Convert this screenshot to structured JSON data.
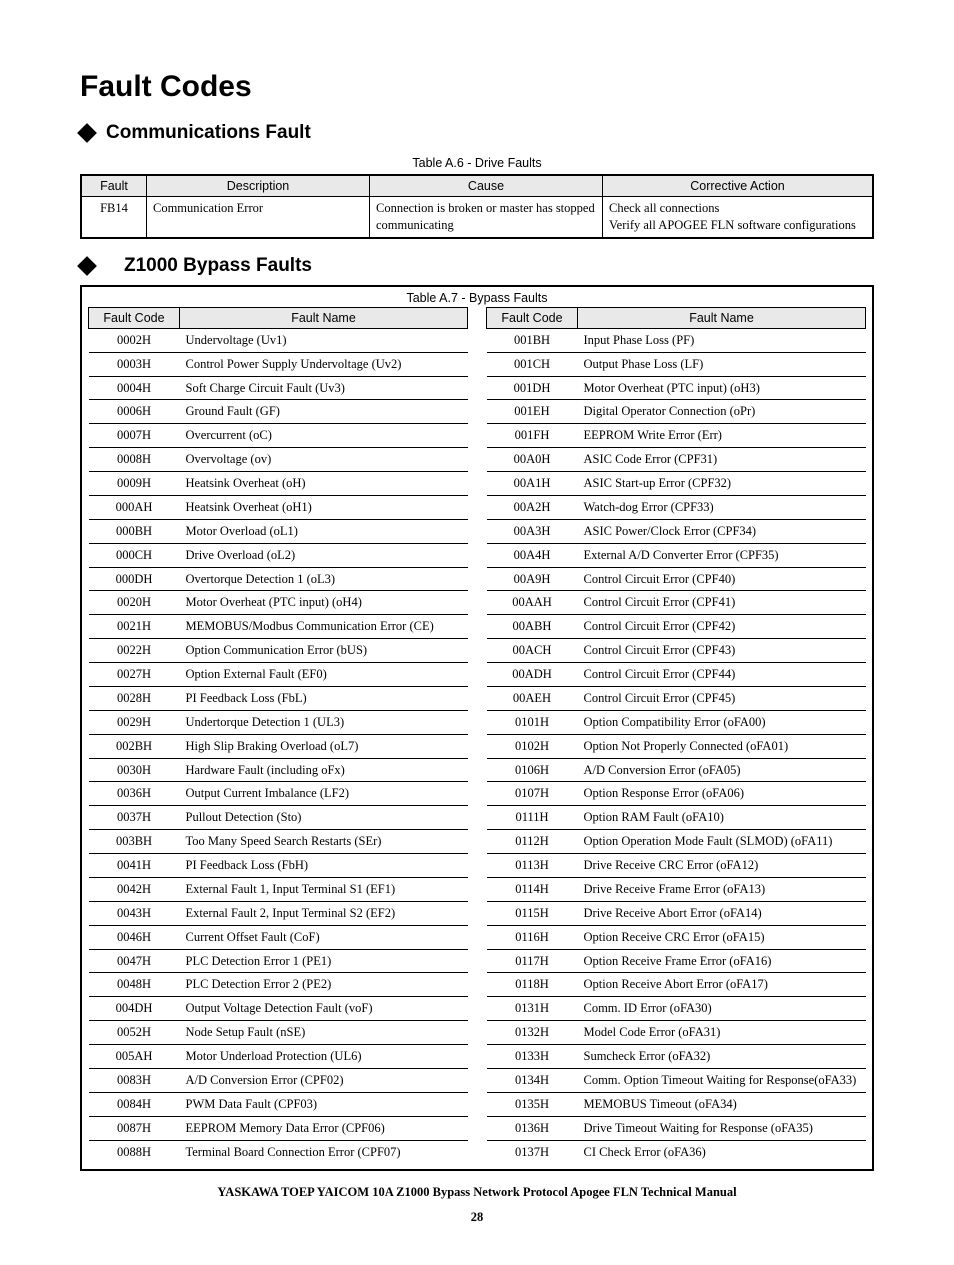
{
  "page_title": "Fault Codes",
  "section1": {
    "heading": "Communications Fault",
    "table_caption": "Table A.6 - Drive Faults",
    "columns": [
      "Fault",
      "Description",
      "Cause",
      "Corrective Action"
    ],
    "row": {
      "fault": "FB14",
      "desc": "Communication Error",
      "cause": "Connection is broken or master has stopped communicating",
      "action_l1": "Check all connections",
      "action_l2": "Verify all APOGEE FLN software configurations"
    }
  },
  "section2": {
    "heading": "Z1000 Bypass Faults",
    "table_caption": "Table A.7  - Bypass Faults",
    "columns": [
      "Fault Code",
      "Fault Name"
    ],
    "left": [
      {
        "code": "0002H",
        "name": "Undervoltage (Uv1)"
      },
      {
        "code": "0003H",
        "name": "Control Power Supply Undervoltage (Uv2)"
      },
      {
        "code": "0004H",
        "name": "Soft Charge Circuit Fault (Uv3)"
      },
      {
        "code": "0006H",
        "name": "Ground Fault (GF)"
      },
      {
        "code": "0007H",
        "name": "Overcurrent (oC)"
      },
      {
        "code": "0008H",
        "name": "Overvoltage (ov)"
      },
      {
        "code": "0009H",
        "name": "Heatsink Overheat (oH)"
      },
      {
        "code": "000AH",
        "name": "Heatsink Overheat (oH1)"
      },
      {
        "code": "000BH",
        "name": "Motor Overload (oL1)"
      },
      {
        "code": "000CH",
        "name": "Drive Overload (oL2)"
      },
      {
        "code": "000DH",
        "name": "Overtorque Detection 1 (oL3)"
      },
      {
        "code": "0020H",
        "name": "Motor Overheat (PTC input) (oH4)"
      },
      {
        "code": "0021H",
        "name": "MEMOBUS/Modbus Communication Error (CE)"
      },
      {
        "code": "0022H",
        "name": "Option Communication Error (bUS)"
      },
      {
        "code": "0027H",
        "name": "Option External Fault (EF0)"
      },
      {
        "code": "0028H",
        "name": "PI Feedback Loss (FbL)"
      },
      {
        "code": "0029H",
        "name": "Undertorque Detection 1 (UL3)"
      },
      {
        "code": "002BH",
        "name": "High Slip Braking Overload (oL7)"
      },
      {
        "code": "0030H",
        "name": "Hardware Fault (including oFx)"
      },
      {
        "code": "0036H",
        "name": "Output Current Imbalance (LF2)"
      },
      {
        "code": "0037H",
        "name": "Pullout Detection (Sto)"
      },
      {
        "code": "003BH",
        "name": "Too Many Speed Search Restarts (SEr)"
      },
      {
        "code": "0041H",
        "name": "PI Feedback Loss (FbH)"
      },
      {
        "code": "0042H",
        "name": "External Fault 1, Input Terminal S1 (EF1)"
      },
      {
        "code": "0043H",
        "name": "External Fault 2, Input Terminal S2 (EF2)"
      },
      {
        "code": "0046H",
        "name": "Current Offset Fault (CoF)"
      },
      {
        "code": "0047H",
        "name": "PLC Detection Error 1 (PE1)"
      },
      {
        "code": "0048H",
        "name": "PLC Detection Error 2 (PE2)"
      },
      {
        "code": "004DH",
        "name": "Output Voltage Detection Fault (voF)"
      },
      {
        "code": "0052H",
        "name": "Node Setup Fault (nSE)"
      },
      {
        "code": "005AH",
        "name": "Motor Underload Protection (UL6)"
      },
      {
        "code": "0083H",
        "name": "A/D Conversion Error (CPF02)"
      },
      {
        "code": "0084H",
        "name": "PWM Data Fault (CPF03)"
      },
      {
        "code": "0087H",
        "name": "EEPROM Memory Data Error (CPF06)"
      },
      {
        "code": "0088H",
        "name": "Terminal Board Connection Error (CPF07)"
      }
    ],
    "right": [
      {
        "code": "001BH",
        "name": "Input Phase Loss (PF)"
      },
      {
        "code": "001CH",
        "name": "Output Phase Loss (LF)"
      },
      {
        "code": "001DH",
        "name": "Motor Overheat (PTC input) (oH3)"
      },
      {
        "code": "001EH",
        "name": "Digital Operator Connection (oPr)"
      },
      {
        "code": "001FH",
        "name": "EEPROM Write Error (Err)"
      },
      {
        "code": "00A0H",
        "name": "ASIC Code Error (CPF31)"
      },
      {
        "code": "00A1H",
        "name": "ASIC Start-up Error (CPF32)"
      },
      {
        "code": "00A2H",
        "name": "Watch-dog Error (CPF33)"
      },
      {
        "code": "00A3H",
        "name": "ASIC Power/Clock Error (CPF34)"
      },
      {
        "code": "00A4H",
        "name": "External A/D Converter Error (CPF35)"
      },
      {
        "code": "00A9H",
        "name": "Control Circuit Error (CPF40)"
      },
      {
        "code": "00AAH",
        "name": "Control Circuit Error (CPF41)"
      },
      {
        "code": "00ABH",
        "name": "Control Circuit Error (CPF42)"
      },
      {
        "code": "00ACH",
        "name": "Control Circuit Error (CPF43)"
      },
      {
        "code": "00ADH",
        "name": "Control Circuit Error (CPF44)"
      },
      {
        "code": "00AEH",
        "name": "Control Circuit Error (CPF45)"
      },
      {
        "code": "0101H",
        "name": "Option Compatibility Error (oFA00)"
      },
      {
        "code": "0102H",
        "name": "Option Not Properly Connected (oFA01)"
      },
      {
        "code": "0106H",
        "name": "A/D Conversion Error (oFA05)"
      },
      {
        "code": "0107H",
        "name": "Option Response Error (oFA06)"
      },
      {
        "code": "0111H",
        "name": "Option RAM Fault (oFA10)"
      },
      {
        "code": "0112H",
        "name": "Option Operation Mode Fault (SLMOD) (oFA11)"
      },
      {
        "code": "0113H",
        "name": "Drive Receive CRC Error (oFA12)"
      },
      {
        "code": "0114H",
        "name": "Drive Receive Frame Error (oFA13)"
      },
      {
        "code": "0115H",
        "name": "Drive Receive Abort Error (oFA14)"
      },
      {
        "code": "0116H",
        "name": "Option Receive CRC Error (oFA15)"
      },
      {
        "code": "0117H",
        "name": "Option Receive Frame Error (oFA16)"
      },
      {
        "code": "0118H",
        "name": "Option Receive Abort Error (oFA17)"
      },
      {
        "code": "0131H",
        "name": "Comm. ID Error (oFA30)"
      },
      {
        "code": "0132H",
        "name": "Model Code Error (oFA31)"
      },
      {
        "code": "0133H",
        "name": "Sumcheck Error (oFA32)"
      },
      {
        "code": "0134H",
        "name": "Comm. Option Timeout Waiting for Response(oFA33)"
      },
      {
        "code": "0135H",
        "name": "MEMOBUS Timeout (oFA34)"
      },
      {
        "code": "0136H",
        "name": "Drive Timeout Waiting for Response (oFA35)"
      },
      {
        "code": "0137H",
        "name": "CI Check Error (oFA36)"
      }
    ]
  },
  "footer": "YASKAWA TOEP YAICOM 10A Z1000 Bypass Network Protocol Apogee FLN Technical Manual",
  "page_number": "28"
}
